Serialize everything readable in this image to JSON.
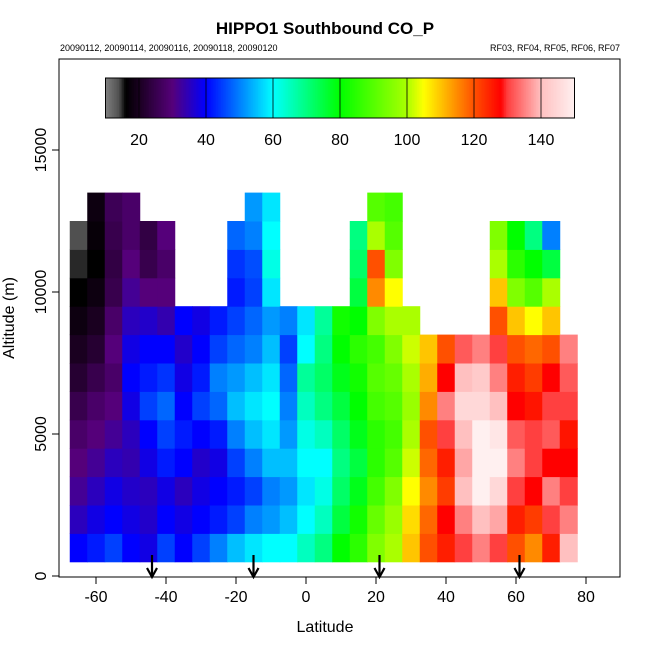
{
  "chart_data": {
    "type": "heatmap",
    "title": "HIPPO1 Southbound CO_P",
    "subtitle_left": "20090112, 20090114, 20090116, 20090118, 20090120",
    "subtitle_right": "RF03, RF04, RF05, RF06, RF07",
    "xlabel": "Latitude",
    "ylabel": "Altitude (m)",
    "xlim": [
      -70,
      90
    ],
    "ylim": [
      0,
      18200
    ],
    "xticks": [
      "-60",
      "-40",
      "-20",
      "0",
      "20",
      "40",
      "60",
      "80"
    ],
    "xtick_values": [
      -60,
      -40,
      -20,
      0,
      20,
      40,
      60,
      80
    ],
    "yticks": [
      "0",
      "5000",
      "10000",
      "15000"
    ],
    "ytick_values": [
      0,
      5000,
      10000,
      15000
    ],
    "grid": false,
    "colorbar": {
      "range": [
        10,
        150
      ],
      "ticks": [
        "20",
        "40",
        "60",
        "80",
        "100",
        "120",
        "140"
      ],
      "tick_values": [
        20,
        40,
        60,
        80,
        100,
        120,
        140
      ],
      "stops": [
        [
          10,
          "#808080"
        ],
        [
          14,
          "#505050"
        ],
        [
          16,
          "#000000"
        ],
        [
          20,
          "#1a0020"
        ],
        [
          30,
          "#55007a"
        ],
        [
          40,
          "#0000ff"
        ],
        [
          60,
          "#00ffff"
        ],
        [
          80,
          "#00ff00"
        ],
        [
          100,
          "#aaff00"
        ],
        [
          105,
          "#ffff00"
        ],
        [
          120,
          "#ff5000"
        ],
        [
          128,
          "#ff0000"
        ],
        [
          130,
          "#ff4040"
        ],
        [
          135,
          "#ff8080"
        ],
        [
          140,
          "#ffc0c0"
        ],
        [
          150,
          "#fff0f0"
        ]
      ]
    },
    "lat_bin_width": 5,
    "alt_bin_height": 1000,
    "altitudes": [
      1000,
      2000,
      3000,
      4000,
      5000,
      6000,
      7000,
      8000,
      9000,
      10000,
      11000,
      12000,
      13000
    ],
    "columns": [
      {
        "lat": -65,
        "values": [
          40,
          35,
          32,
          30,
          28,
          25,
          22,
          20,
          18,
          16,
          15,
          14
        ]
      },
      {
        "lat": -60,
        "values": [
          42,
          38,
          35,
          32,
          30,
          28,
          25,
          22,
          20,
          18,
          16,
          17,
          18
        ]
      },
      {
        "lat": -55,
        "values": [
          45,
          40,
          38,
          35,
          32,
          30,
          28,
          30,
          28,
          25,
          24,
          25,
          26
        ]
      },
      {
        "lat": -50,
        "values": [
          40,
          38,
          36,
          34,
          35,
          38,
          40,
          38,
          35,
          32,
          30,
          28,
          28
        ]
      },
      {
        "lat": -45,
        "values": [
          38,
          36,
          35,
          38,
          40,
          45,
          42,
          40,
          36,
          30,
          25,
          24
        ]
      },
      {
        "lat": -40,
        "values": [
          45,
          40,
          38,
          42,
          45,
          48,
          44,
          40,
          34,
          30,
          28,
          30
        ]
      },
      {
        "lat": -35,
        "values": [
          40,
          38,
          35,
          40,
          42,
          40,
          38,
          36,
          40
        ]
      },
      {
        "lat": -30,
        "values": [
          45,
          40,
          38,
          36,
          40,
          45,
          42,
          40,
          38
        ]
      },
      {
        "lat": -25,
        "values": [
          50,
          42,
          40,
          38,
          42,
          48,
          50,
          45,
          42
        ]
      },
      {
        "lat": -20,
        "values": [
          55,
          45,
          42,
          45,
          50,
          55,
          52,
          48,
          45,
          42,
          44,
          48
        ]
      },
      {
        "lat": -15,
        "values": [
          58,
          50,
          45,
          50,
          55,
          58,
          55,
          50,
          48,
          45,
          46,
          50,
          52
        ]
      },
      {
        "lat": -10,
        "values": [
          60,
          52,
          50,
          55,
          58,
          60,
          58,
          55,
          52,
          58,
          62,
          60,
          58
        ]
      },
      {
        "lat": -5,
        "values": [
          60,
          55,
          52,
          55,
          52,
          50,
          48,
          45,
          50
        ]
      },
      {
        "lat": 0,
        "values": [
          65,
          60,
          58,
          60,
          62,
          65,
          68,
          60,
          58
        ]
      },
      {
        "lat": 5,
        "values": [
          70,
          65,
          62,
          60,
          65,
          70,
          72,
          70,
          68
        ]
      },
      {
        "lat": 10,
        "values": [
          80,
          75,
          72,
          70,
          72,
          75,
          78,
          80,
          82
        ]
      },
      {
        "lat": 15,
        "values": [
          85,
          82,
          78,
          75,
          78,
          80,
          82,
          85,
          80,
          75,
          72,
          70
        ]
      },
      {
        "lat": 20,
        "values": [
          95,
          92,
          88,
          85,
          85,
          88,
          90,
          88,
          95,
          115,
          120,
          100,
          90
        ]
      },
      {
        "lat": 25,
        "values": [
          100,
          98,
          95,
          90,
          88,
          90,
          92,
          95,
          100,
          105,
          95,
          90,
          88
        ]
      },
      {
        "lat": 30,
        "values": [
          110,
          108,
          105,
          102,
          100,
          98,
          100,
          102,
          100
        ]
      },
      {
        "lat": 35,
        "values": [
          120,
          118,
          115,
          118,
          120,
          115,
          112,
          110
        ]
      },
      {
        "lat": 40,
        "values": [
          125,
          128,
          122,
          125,
          130,
          135,
          128,
          120
        ]
      },
      {
        "lat": 45,
        "values": [
          130,
          135,
          140,
          138,
          140,
          145,
          140,
          132
        ]
      },
      {
        "lat": 50,
        "values": [
          135,
          140,
          150,
          150,
          150,
          145,
          142,
          135
        ]
      },
      {
        "lat": 55,
        "values": [
          130,
          138,
          145,
          150,
          148,
          140,
          135,
          130,
          120,
          110,
          100,
          95
        ]
      },
      {
        "lat": 60,
        "values": [
          120,
          125,
          130,
          135,
          132,
          128,
          125,
          120,
          110,
          95,
          85,
          80
        ]
      },
      {
        "lat": 65,
        "values": [
          115,
          122,
          128,
          130,
          130,
          126,
          122,
          118,
          105,
          90,
          80,
          70
        ]
      },
      {
        "lat": 70,
        "values": [
          125,
          130,
          135,
          128,
          132,
          130,
          128,
          120,
          110,
          100,
          75,
          50
        ]
      },
      {
        "lat": 75,
        "values": [
          140,
          135,
          130,
          128,
          126,
          130,
          132,
          135
        ]
      }
    ],
    "flight_markers": [
      -44,
      -15,
      21,
      61
    ]
  }
}
